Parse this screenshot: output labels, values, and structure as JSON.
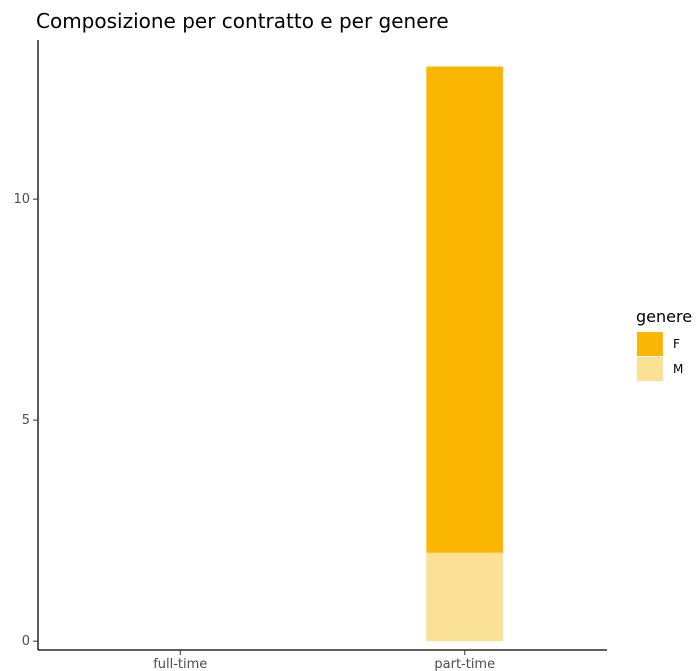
{
  "chart_data": {
    "type": "bar",
    "stacked": true,
    "title": "Composizione per contratto e per genere",
    "xlabel": "",
    "ylabel": "",
    "categories": [
      "full-time",
      "part-time"
    ],
    "series": [
      {
        "name": "M",
        "values": [
          0,
          2
        ],
        "color": "#FBE196"
      },
      {
        "name": "F",
        "values": [
          0,
          11
        ],
        "color": "#FBB604"
      }
    ],
    "ylim": [
      -0.2,
      13.6
    ],
    "yticks": [
      0,
      5,
      10
    ],
    "grid": false,
    "legend": {
      "title": "genere",
      "position": "right",
      "entries": [
        "F",
        "M"
      ]
    }
  }
}
